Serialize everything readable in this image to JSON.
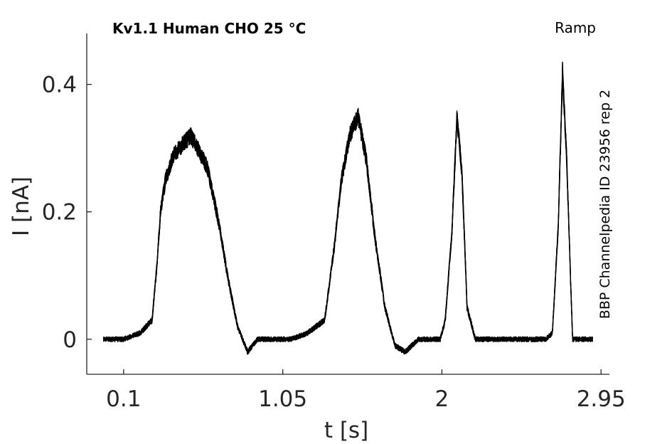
{
  "chart_data": {
    "type": "line",
    "title": "Kv1.1  Human  CHO  25 °C",
    "protocol_label": "Ramp",
    "side_annotation": "BBP Channelpedia ID 23956 rep 2",
    "xlabel": "t [s]",
    "ylabel": "I [nA]",
    "xlim": [
      -0.12,
      3.0
    ],
    "ylim": [
      -0.055,
      0.48
    ],
    "x_ticks": [
      0.1,
      1.05,
      2,
      2.95
    ],
    "x_tick_labels": [
      "0.1",
      "1.05",
      "2",
      "2.95"
    ],
    "y_ticks": [
      0,
      0.2,
      0.4
    ],
    "y_tick_labels": [
      "0",
      "0.2",
      "0.4"
    ],
    "grid": false,
    "line_color": "#000000",
    "series": [
      {
        "x": [
          -0.02,
          0.1,
          0.2,
          0.27,
          0.3,
          0.32,
          0.35,
          0.4,
          0.5,
          0.6,
          0.67,
          0.72,
          0.78,
          0.84,
          0.9,
          0.95,
          1.0,
          1.1,
          1.2,
          1.3,
          1.36,
          1.4,
          1.45,
          1.5,
          1.55,
          1.6,
          1.66,
          1.72,
          1.78,
          1.86,
          1.95,
          1.99,
          2.02,
          2.06,
          2.09,
          2.12,
          2.15,
          2.2,
          2.3,
          2.5,
          2.62,
          2.66,
          2.695,
          2.72,
          2.745,
          2.78,
          2.85,
          2.9
        ],
        "y": [
          0.0,
          0.0,
          0.01,
          0.03,
          0.12,
          0.2,
          0.25,
          0.29,
          0.32,
          0.27,
          0.18,
          0.1,
          0.02,
          -0.02,
          0.0,
          0.0,
          0.0,
          0.0,
          0.01,
          0.03,
          0.15,
          0.25,
          0.32,
          0.35,
          0.28,
          0.16,
          0.05,
          -0.01,
          -0.02,
          0.0,
          0.0,
          0.0,
          0.03,
          0.17,
          0.35,
          0.26,
          0.05,
          0.0,
          0.0,
          0.0,
          0.0,
          0.01,
          0.18,
          0.42,
          0.28,
          0.0,
          0.0,
          0.0
        ]
      }
    ]
  }
}
